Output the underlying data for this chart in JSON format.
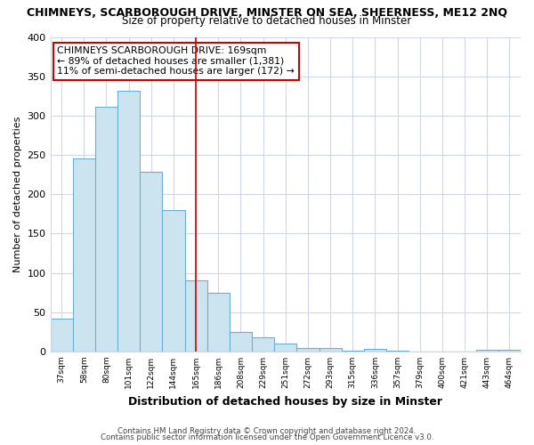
{
  "title": "CHIMNEYS, SCARBOROUGH DRIVE, MINSTER ON SEA, SHEERNESS, ME12 2NQ",
  "subtitle": "Size of property relative to detached houses in Minster",
  "xlabel": "Distribution of detached houses by size in Minster",
  "ylabel": "Number of detached properties",
  "bar_color": "#cce4f0",
  "bar_edge_color": "#6aafd4",
  "categories": [
    "37sqm",
    "58sqm",
    "80sqm",
    "101sqm",
    "122sqm",
    "144sqm",
    "165sqm",
    "186sqm",
    "208sqm",
    "229sqm",
    "251sqm",
    "272sqm",
    "293sqm",
    "315sqm",
    "336sqm",
    "357sqm",
    "379sqm",
    "400sqm",
    "421sqm",
    "443sqm",
    "464sqm"
  ],
  "values": [
    42,
    245,
    311,
    332,
    228,
    180,
    90,
    75,
    25,
    18,
    10,
    5,
    5,
    1,
    3,
    1,
    0,
    0,
    0,
    2,
    2
  ],
  "vline_x": 6,
  "vline_color": "#cc0000",
  "annotation_text": "CHIMNEYS SCARBOROUGH DRIVE: 169sqm\n← 89% of detached houses are smaller (1,381)\n11% of semi-detached houses are larger (172) →",
  "annotation_box_color": "white",
  "annotation_box_edge": "#cc0000",
  "ylim": [
    0,
    400
  ],
  "yticks": [
    0,
    50,
    100,
    150,
    200,
    250,
    300,
    350,
    400
  ],
  "footer1": "Contains HM Land Registry data © Crown copyright and database right 2024.",
  "footer2": "Contains public sector information licensed under the Open Government Licence v3.0.",
  "bg_color": "#ffffff",
  "plot_bg_color": "#ffffff",
  "grid_color": "#d0d8e8"
}
